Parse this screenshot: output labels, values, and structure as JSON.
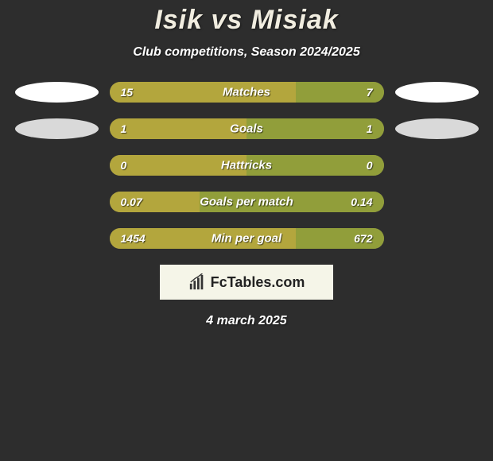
{
  "title": "Isik vs Misiak",
  "title_color": "#f1ede0",
  "subtitle": "Club competitions, Season 2024/2025",
  "date": "4 march 2025",
  "colors": {
    "left_bar": "#b3a63d",
    "right_bar": "#919e3a",
    "track_bg": "#6b6b55",
    "oval_white": "#ffffff",
    "oval_grey": "#d9d9d9"
  },
  "logo": {
    "prefix": "Fc",
    "text": "Tables.com",
    "icon_color": "#333333"
  },
  "stats": [
    {
      "label": "Matches",
      "left_value": "15",
      "right_value": "7",
      "left_pct": 68,
      "right_pct": 32,
      "show_ovals": true,
      "left_oval_color": "#ffffff",
      "right_oval_color": "#ffffff"
    },
    {
      "label": "Goals",
      "left_value": "1",
      "right_value": "1",
      "left_pct": 50,
      "right_pct": 50,
      "show_ovals": true,
      "left_oval_color": "#d9d9d9",
      "right_oval_color": "#d9d9d9"
    },
    {
      "label": "Hattricks",
      "left_value": "0",
      "right_value": "0",
      "left_pct": 50,
      "right_pct": 50,
      "show_ovals": false
    },
    {
      "label": "Goals per match",
      "left_value": "0.07",
      "right_value": "0.14",
      "left_pct": 33,
      "right_pct": 67,
      "show_ovals": false
    },
    {
      "label": "Min per goal",
      "left_value": "1454",
      "right_value": "672",
      "left_pct": 68,
      "right_pct": 32,
      "show_ovals": false
    }
  ]
}
